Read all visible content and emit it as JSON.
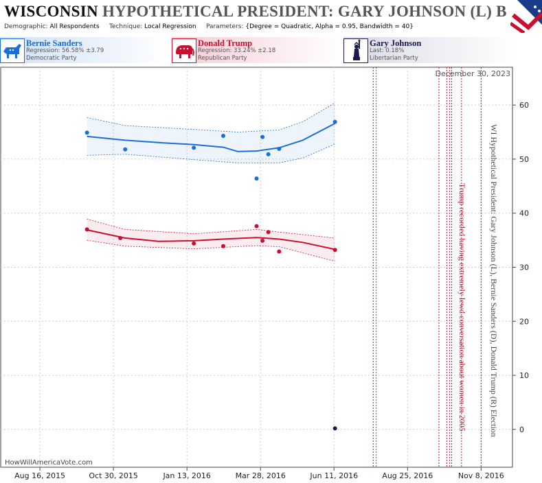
{
  "header": {
    "state": "WISCONSIN",
    "title_rest": "HYPOTHETICAL PRESIDENT: GARY JOHNSON (L) B",
    "demographic_label": "Demographic:",
    "demographic_value": "All Respondents",
    "technique_label": "Technique:",
    "technique_value": "Local Regression",
    "parameters_label": "Parameters:",
    "parameters_value": "{Degree = Quadratic, Alpha = 0.95, Bandwidth = 40}"
  },
  "legend": [
    {
      "name": "Bernie Sanders",
      "line1": "Regression: 56.58% ±3.79",
      "line2": "Democratic Party",
      "color": "#1a6fd6",
      "icon": "donkey-icon"
    },
    {
      "name": "Donald Trump",
      "line1": "Regression: 33.24% ±2.18",
      "line2": "Republican Party",
      "color": "#c8102e",
      "icon": "elephant-icon"
    },
    {
      "name": "Gary Johnson",
      "line1": "Last: 0.18%",
      "line2": "Libertarian Party",
      "color": "#1b1b4b",
      "icon": "statue-of-liberty-icon"
    }
  ],
  "datestamp": "December 30, 2023",
  "watermark": "HowWillAmericaVote.com",
  "annotations": {
    "event_label": "Trump recorded having extremely lewd conversation about women in 2005",
    "side_label": "WI Hypothetical President: Gary Johnson (L), Bernie Sanders (D), Donald Trump (R) Election"
  },
  "chart_data": {
    "type": "scatter",
    "xlabel": "",
    "ylabel": "",
    "ylim": [
      -7,
      67
    ],
    "y_ticks": [
      0,
      10,
      20,
      30,
      40,
      50,
      60
    ],
    "x_ticks": [
      "Aug 16, 2015",
      "Oct 30, 2015",
      "Jan 13, 2016",
      "Mar 28, 2016",
      "Jun 11, 2016",
      "Aug 25, 2016",
      "Nov 8, 2016"
    ],
    "xlim": [
      "2015-07-07",
      "2016-12-10"
    ],
    "series": [
      {
        "name": "Bernie Sanders",
        "color": "#1a6fd6",
        "points": [
          {
            "x": "2015-10-03",
            "y": 54.9
          },
          {
            "x": "2015-11-11",
            "y": 51.8
          },
          {
            "x": "2016-01-20",
            "y": 52.1
          },
          {
            "x": "2016-02-19",
            "y": 54.3
          },
          {
            "x": "2016-03-24",
            "y": 46.4
          },
          {
            "x": "2016-03-30",
            "y": 54.1
          },
          {
            "x": "2016-04-05",
            "y": 50.9
          },
          {
            "x": "2016-04-16",
            "y": 51.9
          },
          {
            "x": "2016-06-12",
            "y": 56.9
          }
        ],
        "regression": [
          {
            "x": "2015-10-03",
            "y": 54.2
          },
          {
            "x": "2015-11-11",
            "y": 53.5
          },
          {
            "x": "2015-12-20",
            "y": 53.0
          },
          {
            "x": "2016-01-20",
            "y": 52.7
          },
          {
            "x": "2016-02-19",
            "y": 52.2
          },
          {
            "x": "2016-03-05",
            "y": 51.4
          },
          {
            "x": "2016-03-24",
            "y": 51.5
          },
          {
            "x": "2016-04-16",
            "y": 52.1
          },
          {
            "x": "2016-05-10",
            "y": 53.5
          },
          {
            "x": "2016-06-12",
            "y": 56.6
          }
        ],
        "band_upper": [
          {
            "x": "2015-10-03",
            "y": 57.7
          },
          {
            "x": "2015-11-11",
            "y": 56.2
          },
          {
            "x": "2016-01-20",
            "y": 55.5
          },
          {
            "x": "2016-03-05",
            "y": 55.0
          },
          {
            "x": "2016-04-16",
            "y": 55.4
          },
          {
            "x": "2016-05-10",
            "y": 56.9
          },
          {
            "x": "2016-06-12",
            "y": 60.4
          }
        ],
        "band_lower": [
          {
            "x": "2015-10-03",
            "y": 50.7
          },
          {
            "x": "2015-11-11",
            "y": 50.9
          },
          {
            "x": "2016-01-20",
            "y": 49.9
          },
          {
            "x": "2016-03-05",
            "y": 49.3
          },
          {
            "x": "2016-04-16",
            "y": 49.3
          },
          {
            "x": "2016-05-10",
            "y": 50.2
          },
          {
            "x": "2016-06-12",
            "y": 52.8
          }
        ]
      },
      {
        "name": "Donald Trump",
        "color": "#c8102e",
        "points": [
          {
            "x": "2015-10-03",
            "y": 37.0
          },
          {
            "x": "2015-11-06",
            "y": 35.4
          },
          {
            "x": "2016-01-20",
            "y": 34.4
          },
          {
            "x": "2016-02-19",
            "y": 33.9
          },
          {
            "x": "2016-03-24",
            "y": 37.6
          },
          {
            "x": "2016-03-30",
            "y": 34.9
          },
          {
            "x": "2016-04-05",
            "y": 36.5
          },
          {
            "x": "2016-04-16",
            "y": 32.9
          },
          {
            "x": "2016-06-12",
            "y": 33.2
          }
        ],
        "regression": [
          {
            "x": "2015-10-03",
            "y": 36.9
          },
          {
            "x": "2015-11-11",
            "y": 35.4
          },
          {
            "x": "2015-12-15",
            "y": 34.8
          },
          {
            "x": "2016-01-20",
            "y": 34.9
          },
          {
            "x": "2016-02-19",
            "y": 35.2
          },
          {
            "x": "2016-03-24",
            "y": 35.5
          },
          {
            "x": "2016-04-16",
            "y": 35.2
          },
          {
            "x": "2016-05-10",
            "y": 34.6
          },
          {
            "x": "2016-06-12",
            "y": 33.3
          }
        ],
        "band_upper": [
          {
            "x": "2015-10-03",
            "y": 38.9
          },
          {
            "x": "2015-11-11",
            "y": 37.0
          },
          {
            "x": "2016-01-20",
            "y": 36.2
          },
          {
            "x": "2016-03-24",
            "y": 37.0
          },
          {
            "x": "2016-04-16",
            "y": 36.5
          },
          {
            "x": "2016-06-12",
            "y": 35.4
          }
        ],
        "band_lower": [
          {
            "x": "2015-10-03",
            "y": 35.0
          },
          {
            "x": "2015-11-11",
            "y": 33.9
          },
          {
            "x": "2016-01-20",
            "y": 33.4
          },
          {
            "x": "2016-03-24",
            "y": 34.0
          },
          {
            "x": "2016-04-16",
            "y": 33.8
          },
          {
            "x": "2016-06-12",
            "y": 31.1
          }
        ]
      },
      {
        "name": "Gary Johnson",
        "color": "#1b1b4b",
        "points": [
          {
            "x": "2016-06-12",
            "y": 0.18
          }
        ]
      }
    ],
    "event_lines": [
      {
        "x": "2016-07-21",
        "color": "#c8102e"
      },
      {
        "x": "2016-07-24",
        "color": "#1a6fd6"
      },
      {
        "x": "2016-09-26",
        "color": "#c8102e"
      },
      {
        "x": "2016-10-04",
        "color": "#c8102e"
      },
      {
        "x": "2016-10-07",
        "color": "#c8102e"
      },
      {
        "x": "2016-10-09",
        "color": "#c8102e"
      },
      {
        "x": "2016-10-19",
        "color": "#c8102e"
      },
      {
        "x": "2016-11-08",
        "color": "#444444"
      }
    ]
  }
}
